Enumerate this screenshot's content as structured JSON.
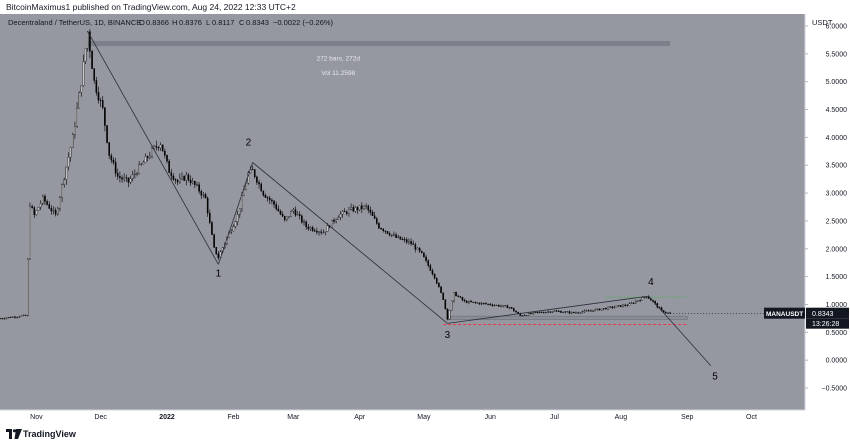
{
  "header": {
    "publisher": "BitcoinMaximus1 published on TradingView.com, Aug 24, 2022 12:33 UTC+2"
  },
  "footer": {
    "brand": "TradingView"
  },
  "colors": {
    "plot_bg": "#9598a1",
    "candle": "#000000",
    "label_bg": "#131722",
    "dashed_red": "#f23645",
    "dotted_green": "#4caf50",
    "range_box": "#787b86"
  },
  "chart_data": {
    "type": "candlestick",
    "title": "Decentraland / TetherUS, 1D, BINANCE",
    "ohlc": {
      "o_label": "O",
      "o": "0.8366",
      "h_label": "H",
      "h": "0.8376",
      "l_label": "L",
      "l": "0.8117",
      "c_label": "C",
      "c": "0.8343",
      "change": "−0.0022 (−0.26%)"
    },
    "currency": "USDT",
    "symbol": "MANAUSDT",
    "last_price": 0.8343,
    "last_price_label": "0.8343",
    "countdown": "13:26:28",
    "ylim": [
      -0.5,
      6.0
    ],
    "yticks": [
      {
        "v": 6.0,
        "t": "6.0000"
      },
      {
        "v": 5.5,
        "t": "5.5000"
      },
      {
        "v": 5.0,
        "t": "5.0000"
      },
      {
        "v": 4.5,
        "t": "4.5000"
      },
      {
        "v": 4.0,
        "t": "4.0000"
      },
      {
        "v": 3.5,
        "t": "3.5000"
      },
      {
        "v": 3.0,
        "t": "3.0000"
      },
      {
        "v": 2.5,
        "t": "2.5000"
      },
      {
        "v": 2.0,
        "t": "2.0000"
      },
      {
        "v": 1.5,
        "t": "1.5000"
      },
      {
        "v": 1.0,
        "t": "1.0000"
      },
      {
        "v": 0.5,
        "t": "0.5000"
      },
      {
        "v": 0.0,
        "t": "0.0000"
      },
      {
        "v": -0.5,
        "t": "−0.5000"
      }
    ],
    "xlim": [
      "2021-10-15",
      "2022-10-26"
    ],
    "xticks": [
      {
        "d": "2021-11-01",
        "t": "Nov",
        "bold": false
      },
      {
        "d": "2021-12-01",
        "t": "Dec",
        "bold": false
      },
      {
        "d": "2022-01-01",
        "t": "2022",
        "bold": true
      },
      {
        "d": "2022-02-01",
        "t": "Feb",
        "bold": false
      },
      {
        "d": "2022-03-01",
        "t": "Mar",
        "bold": false
      },
      {
        "d": "2022-04-01",
        "t": "Apr",
        "bold": false
      },
      {
        "d": "2022-05-01",
        "t": "May",
        "bold": false
      },
      {
        "d": "2022-06-01",
        "t": "Jun",
        "bold": false
      },
      {
        "d": "2022-07-01",
        "t": "Jul",
        "bold": false
      },
      {
        "d": "2022-08-01",
        "t": "Aug",
        "bold": false
      },
      {
        "d": "2022-09-01",
        "t": "Sep",
        "bold": false
      },
      {
        "d": "2022-10-01",
        "t": "Oct",
        "bold": false
      }
    ],
    "price_path": [
      {
        "d": "2021-10-15",
        "v": 0.75
      },
      {
        "d": "2021-10-27",
        "v": 0.8
      },
      {
        "d": "2021-10-29",
        "v": 2.8
      },
      {
        "d": "2021-10-31",
        "v": 2.6
      },
      {
        "d": "2021-11-04",
        "v": 2.9
      },
      {
        "d": "2021-11-10",
        "v": 2.6
      },
      {
        "d": "2021-11-14",
        "v": 3.3
      },
      {
        "d": "2021-11-18",
        "v": 4.0
      },
      {
        "d": "2021-11-22",
        "v": 5.0
      },
      {
        "d": "2021-11-25",
        "v": 5.9
      },
      {
        "d": "2021-11-28",
        "v": 5.0
      },
      {
        "d": "2021-12-02",
        "v": 4.5
      },
      {
        "d": "2021-12-05",
        "v": 3.7
      },
      {
        "d": "2021-12-09",
        "v": 3.3
      },
      {
        "d": "2021-12-14",
        "v": 3.2
      },
      {
        "d": "2021-12-20",
        "v": 3.5
      },
      {
        "d": "2021-12-26",
        "v": 3.8
      },
      {
        "d": "2021-12-29",
        "v": 3.9
      },
      {
        "d": "2022-01-02",
        "v": 3.4
      },
      {
        "d": "2022-01-06",
        "v": 3.2
      },
      {
        "d": "2022-01-10",
        "v": 3.3
      },
      {
        "d": "2022-01-15",
        "v": 3.1
      },
      {
        "d": "2022-01-19",
        "v": 2.9
      },
      {
        "d": "2022-01-23",
        "v": 2.0
      },
      {
        "d": "2022-01-25",
        "v": 1.85
      },
      {
        "d": "2022-01-29",
        "v": 2.2
      },
      {
        "d": "2022-02-03",
        "v": 2.6
      },
      {
        "d": "2022-02-08",
        "v": 3.35
      },
      {
        "d": "2022-02-10",
        "v": 3.4
      },
      {
        "d": "2022-02-15",
        "v": 3.0
      },
      {
        "d": "2022-02-20",
        "v": 2.8
      },
      {
        "d": "2022-02-25",
        "v": 2.5
      },
      {
        "d": "2022-03-01",
        "v": 2.7
      },
      {
        "d": "2022-03-07",
        "v": 2.4
      },
      {
        "d": "2022-03-15",
        "v": 2.3
      },
      {
        "d": "2022-03-22",
        "v": 2.6
      },
      {
        "d": "2022-03-28",
        "v": 2.7
      },
      {
        "d": "2022-04-04",
        "v": 2.75
      },
      {
        "d": "2022-04-10",
        "v": 2.4
      },
      {
        "d": "2022-04-18",
        "v": 2.2
      },
      {
        "d": "2022-04-25",
        "v": 2.1
      },
      {
        "d": "2022-04-30",
        "v": 1.9
      },
      {
        "d": "2022-05-06",
        "v": 1.5
      },
      {
        "d": "2022-05-10",
        "v": 1.1
      },
      {
        "d": "2022-05-12",
        "v": 0.75
      },
      {
        "d": "2022-05-15",
        "v": 1.2
      },
      {
        "d": "2022-05-20",
        "v": 1.05
      },
      {
        "d": "2022-06-01",
        "v": 1.0
      },
      {
        "d": "2022-06-10",
        "v": 0.95
      },
      {
        "d": "2022-06-15",
        "v": 0.8
      },
      {
        "d": "2022-06-22",
        "v": 0.85
      },
      {
        "d": "2022-07-01",
        "v": 0.88
      },
      {
        "d": "2022-07-10",
        "v": 0.85
      },
      {
        "d": "2022-07-20",
        "v": 0.9
      },
      {
        "d": "2022-07-28",
        "v": 0.95
      },
      {
        "d": "2022-08-05",
        "v": 1.0
      },
      {
        "d": "2022-08-13",
        "v": 1.15
      },
      {
        "d": "2022-08-16",
        "v": 1.05
      },
      {
        "d": "2022-08-20",
        "v": 0.88
      },
      {
        "d": "2022-08-24",
        "v": 0.8343
      }
    ],
    "trendlines": [
      {
        "from": {
          "d": "2021-11-25",
          "v": 5.9
        },
        "to": {
          "d": "2022-01-25",
          "v": 1.72
        }
      },
      {
        "from": {
          "d": "2022-01-25",
          "v": 1.72
        },
        "to": {
          "d": "2022-02-10",
          "v": 3.55
        }
      },
      {
        "from": {
          "d": "2022-02-10",
          "v": 3.55
        },
        "to": {
          "d": "2022-05-12",
          "v": 0.66
        }
      },
      {
        "from": {
          "d": "2022-05-12",
          "v": 0.66
        },
        "to": {
          "d": "2022-08-14",
          "v": 1.15
        }
      },
      {
        "from": {
          "d": "2022-08-14",
          "v": 1.15
        },
        "to": {
          "d": "2022-09-12",
          "v": -0.1
        }
      }
    ],
    "wave_labels": [
      {
        "t": "1",
        "d": "2022-01-25",
        "v": 1.5
      },
      {
        "t": "2",
        "d": "2022-02-08",
        "v": 3.85
      },
      {
        "t": "3",
        "d": "2022-05-12",
        "v": 0.4
      },
      {
        "t": "4",
        "d": "2022-08-15",
        "v": 1.35
      },
      {
        "t": "5",
        "d": "2022-09-14",
        "v": -0.35
      }
    ],
    "range_measure": {
      "from": "2021-11-25",
      "to": "2022-08-24",
      "v_top": 5.73,
      "v_bottom": 5.64,
      "bars_label": "272 bars, 272d",
      "vol_label": "Vol 11.2598",
      "label_d": "2022-03-22",
      "bars_v": 5.38,
      "vol_v": 5.12
    },
    "support_zone": {
      "from": "2022-05-12",
      "to": "2022-09-01",
      "v_top": 0.79,
      "v_bottom": 0.73
    },
    "dashed_red_level": {
      "v": 0.64,
      "from": "2022-05-10",
      "to": "2022-09-01"
    },
    "dotted_green_level": {
      "v": 1.13,
      "from": "2022-07-25",
      "to": "2022-09-01"
    }
  }
}
